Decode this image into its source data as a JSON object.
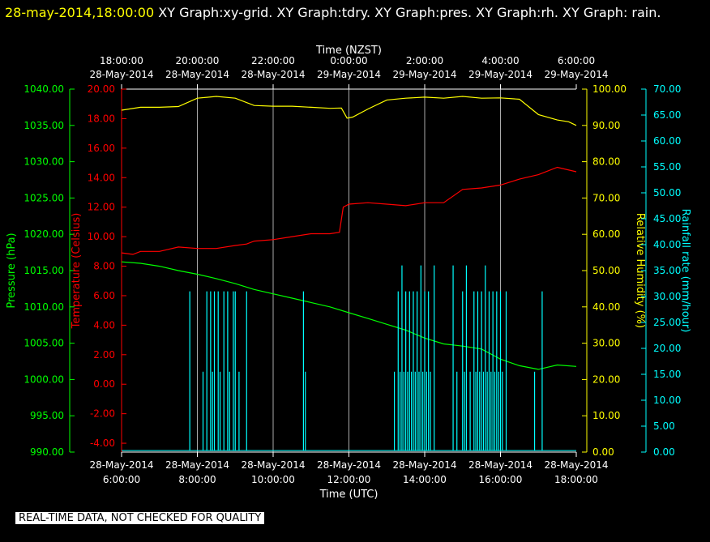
{
  "header": {
    "timestamp": "28-may-2014,18:00:00",
    "rest": "  XY Graph:xy-grid.  XY Graph:tdry.  XY Graph:pres.  XY Graph:rh.  XY Graph: rain."
  },
  "notice": "REAL-TIME DATA, NOT CHECKED FOR QUALITY",
  "colors": {
    "pressure": "#00ff00",
    "temperature": "#ff0000",
    "humidity": "#ffff00",
    "rain": "#00ffff",
    "grid": "#ffffff",
    "background": "#000000"
  },
  "chart_data": {
    "type": "line",
    "x_top": {
      "title": "Time (NZST)",
      "ticks": [
        {
          "time": "18:00:00",
          "date": "28-May-2014"
        },
        {
          "time": "20:00:00",
          "date": "28-May-2014"
        },
        {
          "time": "22:00:00",
          "date": "28-May-2014"
        },
        {
          "time": "0:00:00",
          "date": "29-May-2014"
        },
        {
          "time": "2:00:00",
          "date": "29-May-2014"
        },
        {
          "time": "4:00:00",
          "date": "29-May-2014"
        },
        {
          "time": "6:00:00",
          "date": "29-May-2014"
        }
      ]
    },
    "x_bottom": {
      "title": "Time (UTC)",
      "range_hours": [
        6,
        18
      ],
      "ticks": [
        {
          "hour": 6,
          "date": "28-May-2014",
          "time": "6:00:00"
        },
        {
          "hour": 8,
          "date": "28-May-2014",
          "time": "8:00:00"
        },
        {
          "hour": 10,
          "date": "28-May-2014",
          "time": "10:00:00"
        },
        {
          "hour": 12,
          "date": "28-May-2014",
          "time": "12:00:00"
        },
        {
          "hour": 14,
          "date": "28-May-2014",
          "time": "14:00:00"
        },
        {
          "hour": 16,
          "date": "28-May-2014",
          "time": "16:00:00"
        },
        {
          "hour": 18,
          "date": "28-May-2014",
          "time": "18:00:00"
        }
      ]
    },
    "axes": {
      "pressure": {
        "label": "Pressure (hPa)",
        "range": [
          990,
          1040
        ],
        "ticks": [
          "990.00",
          "995.00",
          "1000.00",
          "1005.00",
          "1010.00",
          "1015.00",
          "1020.00",
          "1025.00",
          "1030.00",
          "1035.00",
          "1040.00"
        ]
      },
      "temperature": {
        "label": "Temperature (Celsius)",
        "range": [
          -4.6,
          20
        ],
        "ticks": [
          "-4.00",
          "-2.00",
          "0.00",
          "2.00",
          "4.00",
          "6.00",
          "8.00",
          "10.00",
          "12.00",
          "14.00",
          "16.00",
          "18.00",
          "20.00"
        ]
      },
      "humidity": {
        "label": "Relative Humidity (%)",
        "range": [
          0,
          100
        ],
        "ticks": [
          "0.00",
          "10.00",
          "20.00",
          "30.00",
          "40.00",
          "50.00",
          "60.00",
          "70.00",
          "80.00",
          "90.00",
          "100.00"
        ]
      },
      "rain": {
        "label": "Rainfall rate (mm/hour)",
        "range": [
          0,
          70
        ],
        "ticks": [
          "0.00",
          "5.00",
          "10.00",
          "15.00",
          "20.00",
          "25.00",
          "30.00",
          "35.00",
          "40.00",
          "45.00",
          "50.00",
          "55.00",
          "60.00",
          "65.00",
          "70.00"
        ]
      }
    },
    "series": [
      {
        "name": "Relative Humidity (%)",
        "axis": "humidity",
        "x": [
          6.0,
          6.5,
          7.0,
          7.5,
          8.0,
          8.5,
          9.0,
          9.5,
          10.0,
          10.5,
          11.0,
          11.5,
          11.8,
          11.95,
          12.1,
          12.5,
          13.0,
          13.5,
          14.0,
          14.5,
          15.0,
          15.5,
          16.0,
          16.5,
          17.0,
          17.5,
          17.8,
          18.0
        ],
        "values": [
          94.2,
          95.0,
          95.0,
          95.2,
          97.5,
          98.0,
          97.5,
          95.5,
          95.3,
          95.3,
          95.0,
          94.7,
          94.8,
          92.0,
          92.3,
          94.5,
          97.0,
          97.5,
          97.8,
          97.5,
          98.0,
          97.5,
          97.6,
          97.2,
          93.0,
          91.5,
          91.0,
          90.0
        ]
      },
      {
        "name": "Temperature (Celsius)",
        "axis": "temperature",
        "x": [
          6.0,
          6.3,
          6.5,
          7.0,
          7.5,
          8.0,
          8.5,
          9.0,
          9.3,
          9.5,
          10.0,
          10.5,
          11.0,
          11.5,
          11.75,
          11.85,
          12.0,
          12.5,
          13.0,
          13.5,
          14.0,
          14.5,
          15.0,
          15.5,
          16.0,
          16.5,
          17.0,
          17.5,
          18.0
        ],
        "values": [
          8.9,
          8.8,
          9.0,
          9.0,
          9.3,
          9.2,
          9.2,
          9.4,
          9.5,
          9.7,
          9.8,
          10.0,
          10.2,
          10.2,
          10.3,
          12.0,
          12.2,
          12.3,
          12.2,
          12.1,
          12.3,
          12.3,
          13.2,
          13.3,
          13.5,
          13.9,
          14.2,
          14.7,
          14.4
        ]
      },
      {
        "name": "Pressure (hPa)",
        "axis": "pressure",
        "x": [
          6.0,
          6.5,
          7.0,
          7.5,
          8.0,
          8.5,
          9.0,
          9.5,
          10.0,
          10.5,
          11.0,
          11.5,
          12.0,
          12.5,
          13.0,
          13.5,
          14.0,
          14.5,
          15.0,
          15.5,
          16.0,
          16.5,
          17.0,
          17.5,
          18.0
        ],
        "values": [
          1016.2,
          1016.0,
          1015.6,
          1015.0,
          1014.5,
          1013.9,
          1013.2,
          1012.4,
          1011.8,
          1011.2,
          1010.6,
          1010.0,
          1009.2,
          1008.4,
          1007.6,
          1006.8,
          1005.7,
          1004.9,
          1004.6,
          1004.2,
          1002.8,
          1001.9,
          1001.4,
          1002.0,
          1001.8
        ]
      },
      {
        "name": "Rainfall rate (mm/hour)",
        "axis": "rain",
        "kind": "spikes",
        "baseline": 0.3,
        "spikes": [
          [
            7.8,
            31
          ],
          [
            8.15,
            15.5
          ],
          [
            8.25,
            31
          ],
          [
            8.35,
            31
          ],
          [
            8.4,
            15.5
          ],
          [
            8.45,
            31
          ],
          [
            8.55,
            31
          ],
          [
            8.6,
            15.5
          ],
          [
            8.7,
            31
          ],
          [
            8.8,
            31
          ],
          [
            8.85,
            15.5
          ],
          [
            8.95,
            31
          ],
          [
            9.0,
            31
          ],
          [
            9.1,
            15.5
          ],
          [
            9.3,
            31
          ],
          [
            10.8,
            31
          ],
          [
            10.85,
            15.5
          ],
          [
            13.2,
            15.5
          ],
          [
            13.3,
            31
          ],
          [
            13.35,
            15.5
          ],
          [
            13.4,
            36
          ],
          [
            13.45,
            15.5
          ],
          [
            13.5,
            31
          ],
          [
            13.55,
            15.5
          ],
          [
            13.6,
            31
          ],
          [
            13.65,
            15.5
          ],
          [
            13.7,
            31
          ],
          [
            13.75,
            15.5
          ],
          [
            13.8,
            31
          ],
          [
            13.85,
            15.5
          ],
          [
            13.9,
            36
          ],
          [
            13.95,
            15.5
          ],
          [
            14.0,
            31
          ],
          [
            14.05,
            15.5
          ],
          [
            14.1,
            31
          ],
          [
            14.15,
            15.5
          ],
          [
            14.25,
            36
          ],
          [
            14.75,
            36
          ],
          [
            14.85,
            15.5
          ],
          [
            15.0,
            31
          ],
          [
            15.05,
            15.5
          ],
          [
            15.1,
            36
          ],
          [
            15.2,
            15.5
          ],
          [
            15.3,
            31
          ],
          [
            15.35,
            15.5
          ],
          [
            15.4,
            31
          ],
          [
            15.45,
            15.5
          ],
          [
            15.5,
            31
          ],
          [
            15.55,
            15.5
          ],
          [
            15.6,
            36
          ],
          [
            15.65,
            15.5
          ],
          [
            15.7,
            31
          ],
          [
            15.75,
            15.5
          ],
          [
            15.8,
            31
          ],
          [
            15.85,
            15.5
          ],
          [
            15.9,
            31
          ],
          [
            15.95,
            15.5
          ],
          [
            16.0,
            31
          ],
          [
            16.05,
            15.5
          ],
          [
            16.15,
            31
          ],
          [
            16.9,
            15.5
          ],
          [
            17.1,
            31
          ]
        ]
      }
    ],
    "grid": true
  }
}
